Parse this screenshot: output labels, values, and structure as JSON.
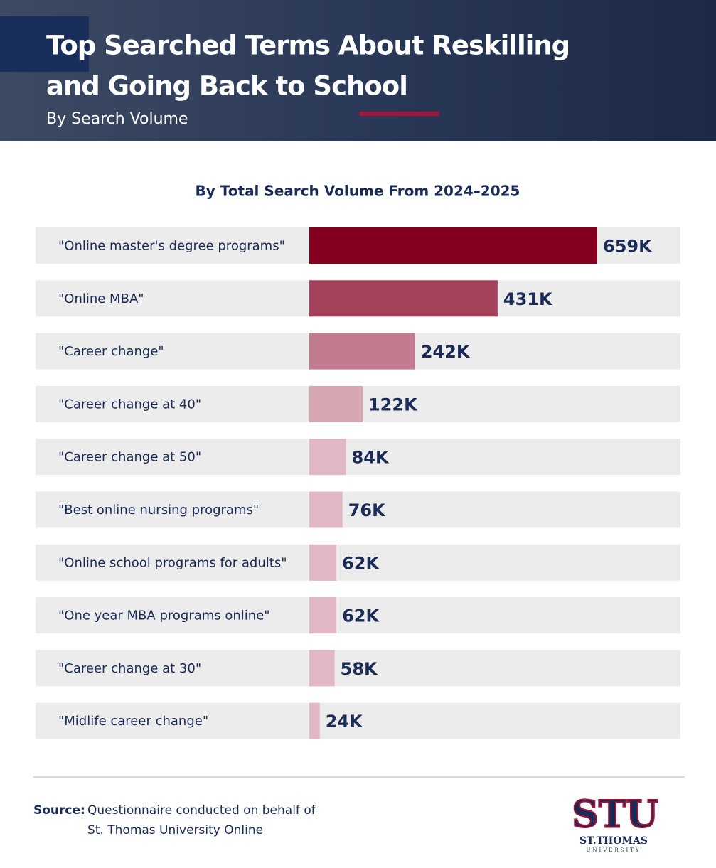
{
  "header": {
    "title_lines": [
      "Top Searched Terms About Reskilling",
      "and Going Back to School"
    ],
    "subtitle": "By Search Volume"
  },
  "chart_data": {
    "type": "bar",
    "orientation": "horizontal",
    "title": "By Total Search Volume From 2024–2025",
    "categories": [
      "\"Online master's degree programs\"",
      "\"Online MBA\"",
      "\"Career change\"",
      "\"Career change at 40\"",
      "\"Career change at 50\"",
      "\"Best online nursing programs\"",
      "\"Online school programs for adults\"",
      "\"One year MBA programs online\"",
      "\"Career change at 30\"",
      "\"Midlife career change\""
    ],
    "values": [
      659000,
      431000,
      242000,
      122000,
      84000,
      76000,
      62000,
      62000,
      58000,
      24000
    ],
    "value_labels": [
      "659K",
      "431K",
      "242K",
      "122K",
      "84K",
      "76K",
      "62K",
      "62K",
      "58K",
      "24K"
    ],
    "colors": [
      "#85001f",
      "#a4425c",
      "#c17b8f",
      "#d6a6b2",
      "#e1b7c3",
      "#e1b7c3",
      "#e1b7c3",
      "#e1b7c3",
      "#e1b7c3",
      "#e1b7c3"
    ]
  },
  "footer": {
    "source_label": "Source:",
    "source_lines": [
      "Questionnaire conducted on behalf of",
      "St. Thomas University Online"
    ],
    "logo": {
      "mark": "STU",
      "name": "ST.THOMAS",
      "sub": "UNIVERSITY"
    }
  }
}
